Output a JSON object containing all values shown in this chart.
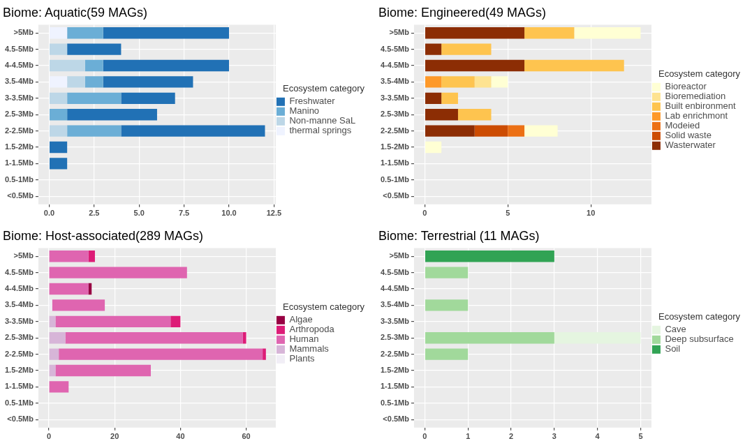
{
  "chart_data": [
    {
      "type": "bar",
      "orientation": "horizontal",
      "stacked": true,
      "title": "Biome: Aquatic(59 MAGs)",
      "legend_title": "Ecosystem category",
      "legend": "right",
      "grid": true,
      "categories": [
        ">5Mb",
        "4.5-5Mb",
        "4-4.5Mb",
        "3.5-4Mb",
        "3-3.5Mb",
        "2.5-3Mb",
        "2-2.5Mb",
        "1.5-2Mb",
        "1-1.5Mb",
        "0.5-1Mb",
        "<0.5Mb"
      ],
      "xlim": [
        -0.6,
        12.6
      ],
      "xticks": [
        {
          "value": 0,
          "label": "0.0"
        },
        2.5,
        {
          "value": 5,
          "label": "5.0"
        },
        7.5,
        {
          "value": 10,
          "label": "10.0"
        },
        12.5
      ],
      "series": [
        {
          "name": "thermal springs",
          "color": "#eff3ff",
          "values": [
            1,
            0,
            0,
            1,
            0,
            0,
            0,
            0,
            0,
            0,
            0
          ]
        },
        {
          "name": "Non-manne SaL",
          "color": "#bdd7e7",
          "values": [
            0,
            1,
            2,
            1,
            1,
            0,
            1,
            0,
            0,
            0,
            0
          ]
        },
        {
          "name": "Manino",
          "color": "#6baed6",
          "values": [
            2,
            0,
            1,
            1,
            3,
            1,
            3,
            0,
            0,
            0,
            0
          ]
        },
        {
          "name": "Freshwater",
          "color": "#2171b5",
          "values": [
            7,
            3,
            7,
            5,
            3,
            5,
            8,
            1,
            1,
            0,
            0
          ]
        }
      ]
    },
    {
      "type": "bar",
      "orientation": "horizontal",
      "stacked": true,
      "title": "Biome: Engineered(49 MAGs)",
      "legend_title": "Ecosystem category",
      "legend": "right",
      "grid": true,
      "categories": [
        ">5Mb",
        "4.5-5Mb",
        "4-4.5Mb",
        "3.5-4Mb",
        "3-3.5Mb",
        "2.5-3Mb",
        "2-2.5Mb",
        "1.5-2Mb",
        "1-1.5Mb",
        "0.5-1Mb",
        "<0.5Mb"
      ],
      "xlim": [
        -0.65,
        13.65
      ],
      "xticks": [
        0,
        5,
        10
      ],
      "series": [
        {
          "name": "Wasterwater",
          "color": "#8c2d04",
          "values": [
            6,
            1,
            6,
            0,
            1,
            2,
            3,
            0,
            0,
            0,
            0
          ]
        },
        {
          "name": "Solid waste",
          "color": "#cc4c02",
          "values": [
            0,
            0,
            0,
            0,
            0,
            0,
            2,
            0,
            0,
            0,
            0
          ]
        },
        {
          "name": "Modeied",
          "color": "#ec7014",
          "values": [
            0,
            0,
            0,
            0,
            0,
            0,
            1,
            0,
            0,
            0,
            0
          ]
        },
        {
          "name": "Lab enrichmont",
          "color": "#fe9929",
          "values": [
            0,
            0,
            0,
            1,
            0,
            0,
            0,
            0,
            0,
            0,
            0
          ]
        },
        {
          "name": "Built enbironment",
          "color": "#fec44f",
          "values": [
            3,
            3,
            6,
            2,
            1,
            2,
            0,
            0,
            0,
            0,
            0
          ]
        },
        {
          "name": "Bioremediation",
          "color": "#fee391",
          "values": [
            0,
            0,
            0,
            1,
            0,
            0,
            0,
            0,
            0,
            0,
            0
          ]
        },
        {
          "name": "Bioreactor",
          "color": "#ffffd4",
          "values": [
            4,
            0,
            0,
            1,
            0,
            0,
            2,
            1,
            0,
            0,
            0
          ]
        }
      ]
    },
    {
      "type": "bar",
      "orientation": "horizontal",
      "stacked": true,
      "title": "Biome: Host-associated(289 MAGs)",
      "legend_title": "Ecosystem category",
      "legend": "right",
      "grid": true,
      "categories": [
        ">5Mb",
        "4.5-5Mb",
        "4-4.5Mb",
        "3.5-4Mb",
        "3-3.5Mb",
        "2.5-3Mb",
        "2-2.5Mb",
        "1.5-2Mb",
        "1-1.5Mb",
        "0.5-1Mb",
        "<0.5Mb"
      ],
      "xlim": [
        -3.2,
        69
      ],
      "xticks": [
        0,
        20,
        40,
        60
      ],
      "series": [
        {
          "name": "Plants",
          "color": "#f1eef6",
          "values": [
            0,
            0,
            0,
            1,
            0,
            0,
            0,
            0,
            0,
            0,
            0
          ]
        },
        {
          "name": "Mammals",
          "color": "#d7b5d8",
          "values": [
            0,
            0,
            0,
            0,
            2,
            5,
            3,
            2,
            0,
            0,
            0
          ]
        },
        {
          "name": "Human",
          "color": "#df65b0",
          "values": [
            12,
            42,
            12,
            16,
            35,
            54,
            62,
            29,
            6,
            0,
            0
          ]
        },
        {
          "name": "Arthropoda",
          "color": "#dd1c77",
          "values": [
            2,
            0,
            0,
            0,
            3,
            1,
            1,
            0,
            0,
            0,
            0
          ]
        },
        {
          "name": "Algae",
          "color": "#980043",
          "values": [
            0,
            0,
            1,
            0,
            0,
            0,
            0,
            0,
            0,
            0,
            0
          ]
        }
      ]
    },
    {
      "type": "bar",
      "orientation": "horizontal",
      "stacked": true,
      "title": "Biome: Terrestrial (11 MAGs)",
      "legend_title": "Ecosystem category",
      "legend": "right",
      "grid": true,
      "categories": [
        ">5Mb",
        "4.5-5Mb",
        "4-4.5Mb",
        "3.5-4Mb",
        "3-3.5Mb",
        "2.5-3Mb",
        "2-2.5Mb",
        "1.5-2Mb",
        "1-1.5Mb",
        "0.5-1Mb",
        "<0.5Mb"
      ],
      "xlim": [
        -0.25,
        5.25
      ],
      "xticks": [
        0,
        1,
        2,
        3,
        4,
        5
      ],
      "series": [
        {
          "name": "Soil",
          "color": "#31a354",
          "values": [
            3,
            0,
            0,
            0,
            0,
            0,
            0,
            0,
            0,
            0,
            0
          ]
        },
        {
          "name": "Deep subsurface",
          "color": "#a1d99b",
          "values": [
            0,
            1,
            0,
            1,
            0,
            3,
            1,
            0,
            0,
            0,
            0
          ]
        },
        {
          "name": "Cave",
          "color": "#e5f5e0",
          "values": [
            0,
            0,
            0,
            0,
            0,
            2,
            0,
            0,
            0,
            0,
            0
          ]
        }
      ]
    }
  ]
}
